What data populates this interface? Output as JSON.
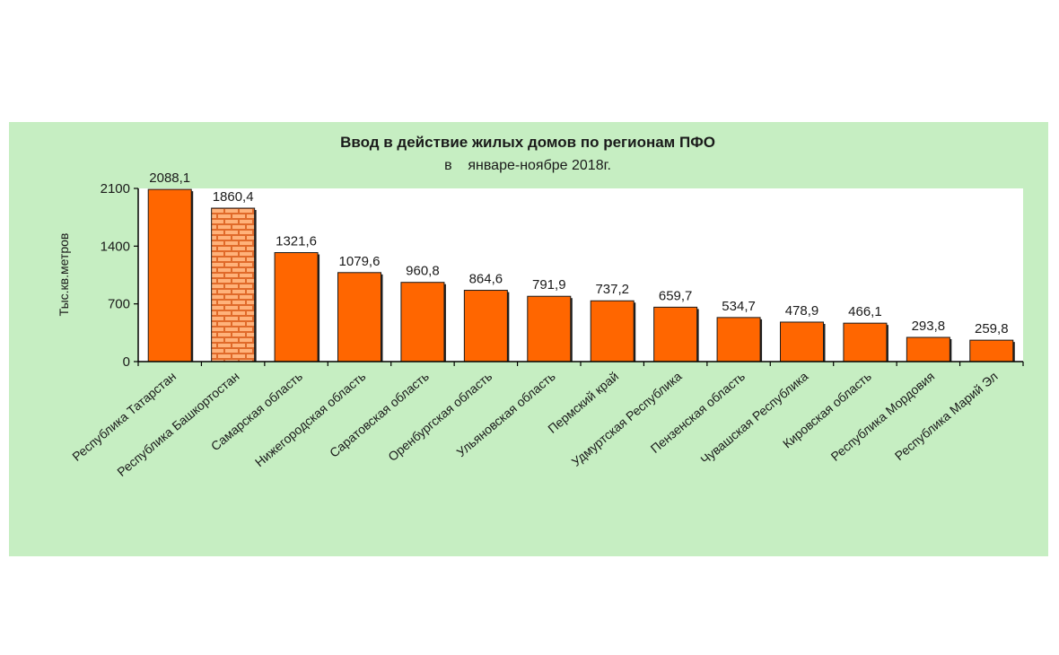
{
  "chart_data": {
    "type": "bar",
    "title": "Ввод в действие жилых домов по регионам ПФО",
    "subtitle": "в    январе-ноябре 2018г.",
    "ylabel": "Тыс.кв.метров",
    "xlabel": "",
    "ylim": [
      0,
      2100
    ],
    "yticks": [
      0,
      700,
      1400,
      2100
    ],
    "grid": false,
    "legend": "none",
    "bar_color": "#ff6600",
    "highlight_bar": "Республика Башкортостан",
    "highlight_pattern": "brick",
    "categories": [
      "Республика Татарстан",
      "Республика Башкортостан",
      "Самарская область",
      "Нижегородская область",
      "Саратовская область",
      "Оренбургская область",
      "Ульяновская область",
      "Пермский край",
      "Удмуртская Республика",
      "Пензенская область",
      "Чувашская Республика",
      "Кировская область",
      "Республика Мордовия",
      "Республика Марий Эл"
    ],
    "values": [
      2088.1,
      1860.4,
      1321.6,
      1079.6,
      960.8,
      864.6,
      791.9,
      737.2,
      659.7,
      534.7,
      478.9,
      466.1,
      293.8,
      259.8
    ],
    "value_labels": [
      "2088,1",
      "1860,4",
      "1321,6",
      "1079,6",
      "960,8",
      "864,6",
      "791,9",
      "737,2",
      "659,7",
      "534,7",
      "478,9",
      "466,1",
      "293,8",
      "259,8"
    ]
  }
}
